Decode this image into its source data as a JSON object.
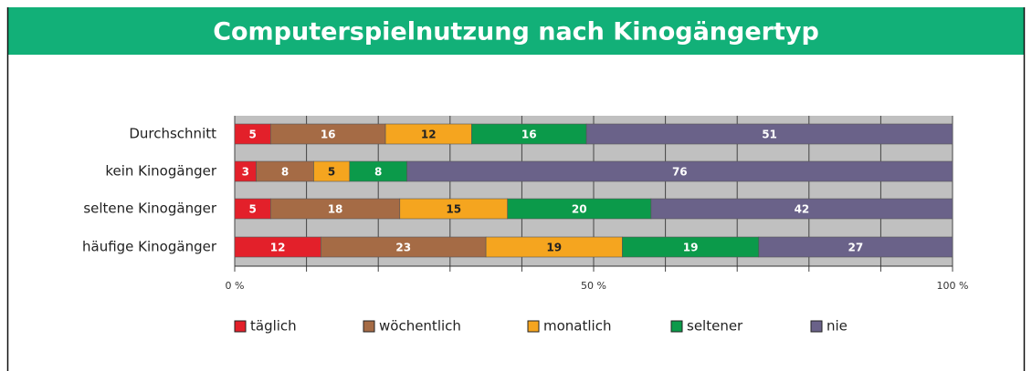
{
  "chart_data": {
    "type": "stacked_barh",
    "title": "Computerspielnutzung nach Kinogängertyp",
    "categories": [
      "Durchschnitt",
      "kein Kinogänger",
      "seltene Kinogänger",
      "häufige Kinogänger"
    ],
    "series": [
      {
        "name": "täglich",
        "color": "#e3202a",
        "label_color": "#ffffff",
        "values": [
          5,
          3,
          5,
          12
        ]
      },
      {
        "name": "wöchentlich",
        "color": "#a56b45",
        "label_color": "#ffffff",
        "values": [
          16,
          8,
          18,
          23
        ]
      },
      {
        "name": "monatlich",
        "color": "#f5a51f",
        "label_color": "#222222",
        "values": [
          12,
          5,
          15,
          19
        ]
      },
      {
        "name": "seltener",
        "color": "#0b9a4a",
        "label_color": "#ffffff",
        "values": [
          16,
          8,
          20,
          19
        ]
      },
      {
        "name": "nie",
        "color": "#6a6289",
        "label_color": "#ffffff",
        "values": [
          51,
          76,
          42,
          27
        ]
      }
    ],
    "xlim": [
      0,
      100
    ],
    "xticks": [
      {
        "value": 0,
        "label": "0 %"
      },
      {
        "value": 50,
        "label": "50 %"
      },
      {
        "value": 100,
        "label": "100 %"
      }
    ],
    "minor_xticks": [
      10,
      20,
      30,
      40,
      60,
      70,
      80,
      90
    ],
    "grid": true,
    "legend": "bottom"
  }
}
